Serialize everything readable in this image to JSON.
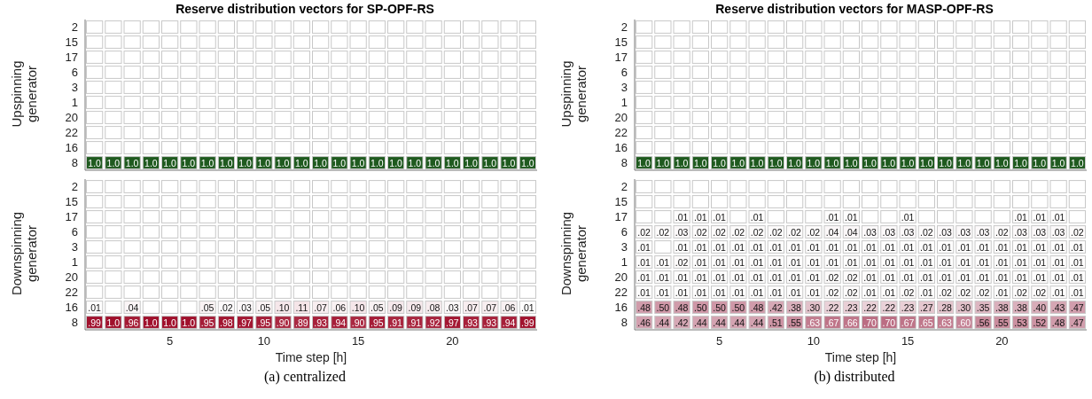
{
  "chart_data": [
    {
      "type": "heatmap",
      "title": "Reserve distribution vectors for SP-OPF-RS",
      "ylabel": "Upspinning generator",
      "color": "#1f5a1f",
      "tick_labels": "y",
      "categories": [
        null,
        null,
        null,
        null,
        "5",
        null,
        null,
        null,
        null,
        "10",
        null,
        null,
        null,
        null,
        "15",
        null,
        null,
        null,
        null,
        "20",
        null,
        null,
        null,
        null
      ],
      "y_categories": [
        "2",
        "15",
        "17",
        "6",
        "3",
        "1",
        "20",
        "22",
        "16",
        "8"
      ],
      "cells": [
        [
          null,
          null,
          null,
          null,
          null,
          null,
          null,
          null,
          null,
          null,
          null,
          null,
          null,
          null,
          null,
          null,
          null,
          null,
          null,
          null,
          null,
          null,
          null,
          null
        ],
        [
          null,
          null,
          null,
          null,
          null,
          null,
          null,
          null,
          null,
          null,
          null,
          null,
          null,
          null,
          null,
          null,
          null,
          null,
          null,
          null,
          null,
          null,
          null,
          null
        ],
        [
          null,
          null,
          null,
          null,
          null,
          null,
          null,
          null,
          null,
          null,
          null,
          null,
          null,
          null,
          null,
          null,
          null,
          null,
          null,
          null,
          null,
          null,
          null,
          null
        ],
        [
          null,
          null,
          null,
          null,
          null,
          null,
          null,
          null,
          null,
          null,
          null,
          null,
          null,
          null,
          null,
          null,
          null,
          null,
          null,
          null,
          null,
          null,
          null,
          null
        ],
        [
          null,
          null,
          null,
          null,
          null,
          null,
          null,
          null,
          null,
          null,
          null,
          null,
          null,
          null,
          null,
          null,
          null,
          null,
          null,
          null,
          null,
          null,
          null,
          null
        ],
        [
          null,
          null,
          null,
          null,
          null,
          null,
          null,
          null,
          null,
          null,
          null,
          null,
          null,
          null,
          null,
          null,
          null,
          null,
          null,
          null,
          null,
          null,
          null,
          null
        ],
        [
          null,
          null,
          null,
          null,
          null,
          null,
          null,
          null,
          null,
          null,
          null,
          null,
          null,
          null,
          null,
          null,
          null,
          null,
          null,
          null,
          null,
          null,
          null,
          null
        ],
        [
          null,
          null,
          null,
          null,
          null,
          null,
          null,
          null,
          null,
          null,
          null,
          null,
          null,
          null,
          null,
          null,
          null,
          null,
          null,
          null,
          null,
          null,
          null,
          null
        ],
        [
          null,
          null,
          null,
          null,
          null,
          null,
          null,
          null,
          null,
          null,
          null,
          null,
          null,
          null,
          null,
          null,
          null,
          null,
          null,
          null,
          null,
          null,
          null,
          null
        ],
        [
          1,
          1,
          1,
          1,
          1,
          1,
          1,
          1,
          1,
          1,
          1,
          1,
          1,
          1,
          1,
          1,
          1,
          1,
          1,
          1,
          1,
          1,
          1,
          1
        ]
      ],
      "cell_labels": [
        [
          null,
          null,
          null,
          null,
          null,
          null,
          null,
          null,
          null,
          null,
          null,
          null,
          null,
          null,
          null,
          null,
          null,
          null,
          null,
          null,
          null,
          null,
          null,
          null
        ],
        [
          null,
          null,
          null,
          null,
          null,
          null,
          null,
          null,
          null,
          null,
          null,
          null,
          null,
          null,
          null,
          null,
          null,
          null,
          null,
          null,
          null,
          null,
          null,
          null
        ],
        [
          null,
          null,
          null,
          null,
          null,
          null,
          null,
          null,
          null,
          null,
          null,
          null,
          null,
          null,
          null,
          null,
          null,
          null,
          null,
          null,
          null,
          null,
          null,
          null
        ],
        [
          null,
          null,
          null,
          null,
          null,
          null,
          null,
          null,
          null,
          null,
          null,
          null,
          null,
          null,
          null,
          null,
          null,
          null,
          null,
          null,
          null,
          null,
          null,
          null
        ],
        [
          null,
          null,
          null,
          null,
          null,
          null,
          null,
          null,
          null,
          null,
          null,
          null,
          null,
          null,
          null,
          null,
          null,
          null,
          null,
          null,
          null,
          null,
          null,
          null
        ],
        [
          null,
          null,
          null,
          null,
          null,
          null,
          null,
          null,
          null,
          null,
          null,
          null,
          null,
          null,
          null,
          null,
          null,
          null,
          null,
          null,
          null,
          null,
          null,
          null
        ],
        [
          null,
          null,
          null,
          null,
          null,
          null,
          null,
          null,
          null,
          null,
          null,
          null,
          null,
          null,
          null,
          null,
          null,
          null,
          null,
          null,
          null,
          null,
          null,
          null
        ],
        [
          null,
          null,
          null,
          null,
          null,
          null,
          null,
          null,
          null,
          null,
          null,
          null,
          null,
          null,
          null,
          null,
          null,
          null,
          null,
          null,
          null,
          null,
          null,
          null
        ],
        [
          null,
          null,
          null,
          null,
          null,
          null,
          null,
          null,
          null,
          null,
          null,
          null,
          null,
          null,
          null,
          null,
          null,
          null,
          null,
          null,
          null,
          null,
          null,
          null
        ],
        [
          "1.0",
          "1.0",
          "1.0",
          "1.0",
          "1.0",
          "1.0",
          "1.0",
          "1.0",
          "1.0",
          "1.0",
          "1.0",
          "1.0",
          "1.0",
          "1.0",
          "1.0",
          "1.0",
          "1.0",
          "1.0",
          "1.0",
          "1.0",
          "1.0",
          "1.0",
          "1.0",
          "1.0"
        ]
      ]
    },
    {
      "type": "heatmap",
      "title": "Reserve distribution vectors for MASP-OPF-RS",
      "ylabel": "Upspinning generator",
      "color": "#1f5a1f",
      "tick_labels": "y",
      "categories": [
        null,
        null,
        null,
        null,
        "5",
        null,
        null,
        null,
        null,
        "10",
        null,
        null,
        null,
        null,
        "15",
        null,
        null,
        null,
        null,
        "20",
        null,
        null,
        null,
        null
      ],
      "y_categories": [
        "2",
        "15",
        "17",
        "6",
        "3",
        "1",
        "20",
        "22",
        "16",
        "8"
      ],
      "cells": [
        [
          null,
          null,
          null,
          null,
          null,
          null,
          null,
          null,
          null,
          null,
          null,
          null,
          null,
          null,
          null,
          null,
          null,
          null,
          null,
          null,
          null,
          null,
          null,
          null
        ],
        [
          null,
          null,
          null,
          null,
          null,
          null,
          null,
          null,
          null,
          null,
          null,
          null,
          null,
          null,
          null,
          null,
          null,
          null,
          null,
          null,
          null,
          null,
          null,
          null
        ],
        [
          null,
          null,
          null,
          null,
          null,
          null,
          null,
          null,
          null,
          null,
          null,
          null,
          null,
          null,
          null,
          null,
          null,
          null,
          null,
          null,
          null,
          null,
          null,
          null
        ],
        [
          null,
          null,
          null,
          null,
          null,
          null,
          null,
          null,
          null,
          null,
          null,
          null,
          null,
          null,
          null,
          null,
          null,
          null,
          null,
          null,
          null,
          null,
          null,
          null
        ],
        [
          null,
          null,
          null,
          null,
          null,
          null,
          null,
          null,
          null,
          null,
          null,
          null,
          null,
          null,
          null,
          null,
          null,
          null,
          null,
          null,
          null,
          null,
          null,
          null
        ],
        [
          null,
          null,
          null,
          null,
          null,
          null,
          null,
          null,
          null,
          null,
          null,
          null,
          null,
          null,
          null,
          null,
          null,
          null,
          null,
          null,
          null,
          null,
          null,
          null
        ],
        [
          null,
          null,
          null,
          null,
          null,
          null,
          null,
          null,
          null,
          null,
          null,
          null,
          null,
          null,
          null,
          null,
          null,
          null,
          null,
          null,
          null,
          null,
          null,
          null
        ],
        [
          null,
          null,
          null,
          null,
          null,
          null,
          null,
          null,
          null,
          null,
          null,
          null,
          null,
          null,
          null,
          null,
          null,
          null,
          null,
          null,
          null,
          null,
          null,
          null
        ],
        [
          null,
          null,
          null,
          null,
          null,
          null,
          null,
          null,
          null,
          null,
          null,
          null,
          null,
          null,
          null,
          null,
          null,
          null,
          null,
          null,
          null,
          null,
          null,
          null
        ],
        [
          1,
          1,
          1,
          1,
          1,
          1,
          1,
          1,
          1,
          1,
          1,
          1,
          1,
          1,
          1,
          1,
          1,
          1,
          1,
          1,
          1,
          1,
          1,
          1
        ]
      ],
      "cell_labels": [
        [
          null,
          null,
          null,
          null,
          null,
          null,
          null,
          null,
          null,
          null,
          null,
          null,
          null,
          null,
          null,
          null,
          null,
          null,
          null,
          null,
          null,
          null,
          null,
          null
        ],
        [
          null,
          null,
          null,
          null,
          null,
          null,
          null,
          null,
          null,
          null,
          null,
          null,
          null,
          null,
          null,
          null,
          null,
          null,
          null,
          null,
          null,
          null,
          null,
          null
        ],
        [
          null,
          null,
          null,
          null,
          null,
          null,
          null,
          null,
          null,
          null,
          null,
          null,
          null,
          null,
          null,
          null,
          null,
          null,
          null,
          null,
          null,
          null,
          null,
          null
        ],
        [
          null,
          null,
          null,
          null,
          null,
          null,
          null,
          null,
          null,
          null,
          null,
          null,
          null,
          null,
          null,
          null,
          null,
          null,
          null,
          null,
          null,
          null,
          null,
          null
        ],
        [
          null,
          null,
          null,
          null,
          null,
          null,
          null,
          null,
          null,
          null,
          null,
          null,
          null,
          null,
          null,
          null,
          null,
          null,
          null,
          null,
          null,
          null,
          null,
          null
        ],
        [
          null,
          null,
          null,
          null,
          null,
          null,
          null,
          null,
          null,
          null,
          null,
          null,
          null,
          null,
          null,
          null,
          null,
          null,
          null,
          null,
          null,
          null,
          null,
          null
        ],
        [
          null,
          null,
          null,
          null,
          null,
          null,
          null,
          null,
          null,
          null,
          null,
          null,
          null,
          null,
          null,
          null,
          null,
          null,
          null,
          null,
          null,
          null,
          null,
          null
        ],
        [
          null,
          null,
          null,
          null,
          null,
          null,
          null,
          null,
          null,
          null,
          null,
          null,
          null,
          null,
          null,
          null,
          null,
          null,
          null,
          null,
          null,
          null,
          null,
          null
        ],
        [
          null,
          null,
          null,
          null,
          null,
          null,
          null,
          null,
          null,
          null,
          null,
          null,
          null,
          null,
          null,
          null,
          null,
          null,
          null,
          null,
          null,
          null,
          null,
          null
        ],
        [
          "1.0",
          "1.0",
          "1.0",
          "1.0",
          "1.0",
          "1.0",
          "1.0",
          "1.0",
          "1.0",
          "1.0",
          "1.0",
          "1.0",
          "1.0",
          "1.0",
          "1.0",
          "1.0",
          "1.0",
          "1.0",
          "1.0",
          "1.0",
          "1.0",
          "1.0",
          "1.0",
          "1.0"
        ]
      ]
    },
    {
      "type": "heatmap",
      "ylabel": "Downspinning generator",
      "xlabel": "Time step [h]",
      "color": "#a0102c",
      "annotations": [
        "(a) centralized"
      ],
      "categories": [
        null,
        null,
        null,
        null,
        "5",
        null,
        null,
        null,
        null,
        "10",
        null,
        null,
        null,
        null,
        "15",
        null,
        null,
        null,
        null,
        "20",
        null,
        null,
        null,
        null
      ],
      "y_categories": [
        "2",
        "15",
        "17",
        "6",
        "3",
        "1",
        "20",
        "22",
        "16",
        "8"
      ],
      "cells": [
        [
          null,
          null,
          null,
          null,
          null,
          null,
          null,
          null,
          null,
          null,
          null,
          null,
          null,
          null,
          null,
          null,
          null,
          null,
          null,
          null,
          null,
          null,
          null,
          null
        ],
        [
          null,
          null,
          null,
          null,
          null,
          null,
          null,
          null,
          null,
          null,
          null,
          null,
          null,
          null,
          null,
          null,
          null,
          null,
          null,
          null,
          null,
          null,
          null,
          null
        ],
        [
          null,
          null,
          null,
          null,
          null,
          null,
          null,
          null,
          null,
          null,
          null,
          null,
          null,
          null,
          null,
          null,
          null,
          null,
          null,
          null,
          null,
          null,
          null,
          null
        ],
        [
          null,
          null,
          null,
          null,
          null,
          null,
          null,
          null,
          null,
          null,
          null,
          null,
          null,
          null,
          null,
          null,
          null,
          null,
          null,
          null,
          null,
          null,
          null,
          null
        ],
        [
          null,
          null,
          null,
          null,
          null,
          null,
          null,
          null,
          null,
          null,
          null,
          null,
          null,
          null,
          null,
          null,
          null,
          null,
          null,
          null,
          null,
          null,
          null,
          null
        ],
        [
          null,
          null,
          null,
          null,
          null,
          null,
          null,
          null,
          null,
          null,
          null,
          null,
          null,
          null,
          null,
          null,
          null,
          null,
          null,
          null,
          null,
          null,
          null,
          null
        ],
        [
          null,
          null,
          null,
          null,
          null,
          null,
          null,
          null,
          null,
          null,
          null,
          null,
          null,
          null,
          null,
          null,
          null,
          null,
          null,
          null,
          null,
          null,
          null,
          null
        ],
        [
          null,
          null,
          null,
          null,
          null,
          null,
          null,
          null,
          null,
          null,
          null,
          null,
          null,
          null,
          null,
          null,
          null,
          null,
          null,
          null,
          null,
          null,
          null,
          null
        ],
        [
          0.01,
          null,
          0.04,
          null,
          null,
          null,
          0.05,
          0.02,
          0.03,
          0.05,
          0.1,
          0.11,
          0.07,
          0.06,
          0.1,
          0.05,
          0.09,
          0.09,
          0.08,
          0.03,
          0.07,
          0.07,
          0.06,
          0.01
        ],
        [
          0.99,
          1,
          0.96,
          1,
          1,
          1,
          0.95,
          0.98,
          0.97,
          0.95,
          0.9,
          0.89,
          0.93,
          0.94,
          0.9,
          0.95,
          0.91,
          0.91,
          0.92,
          0.97,
          0.93,
          0.93,
          0.94,
          0.99
        ]
      ],
      "cell_labels": [
        [
          null,
          null,
          null,
          null,
          null,
          null,
          null,
          null,
          null,
          null,
          null,
          null,
          null,
          null,
          null,
          null,
          null,
          null,
          null,
          null,
          null,
          null,
          null,
          null
        ],
        [
          null,
          null,
          null,
          null,
          null,
          null,
          null,
          null,
          null,
          null,
          null,
          null,
          null,
          null,
          null,
          null,
          null,
          null,
          null,
          null,
          null,
          null,
          null,
          null
        ],
        [
          null,
          null,
          null,
          null,
          null,
          null,
          null,
          null,
          null,
          null,
          null,
          null,
          null,
          null,
          null,
          null,
          null,
          null,
          null,
          null,
          null,
          null,
          null,
          null
        ],
        [
          null,
          null,
          null,
          null,
          null,
          null,
          null,
          null,
          null,
          null,
          null,
          null,
          null,
          null,
          null,
          null,
          null,
          null,
          null,
          null,
          null,
          null,
          null,
          null
        ],
        [
          null,
          null,
          null,
          null,
          null,
          null,
          null,
          null,
          null,
          null,
          null,
          null,
          null,
          null,
          null,
          null,
          null,
          null,
          null,
          null,
          null,
          null,
          null,
          null
        ],
        [
          null,
          null,
          null,
          null,
          null,
          null,
          null,
          null,
          null,
          null,
          null,
          null,
          null,
          null,
          null,
          null,
          null,
          null,
          null,
          null,
          null,
          null,
          null,
          null
        ],
        [
          null,
          null,
          null,
          null,
          null,
          null,
          null,
          null,
          null,
          null,
          null,
          null,
          null,
          null,
          null,
          null,
          null,
          null,
          null,
          null,
          null,
          null,
          null,
          null
        ],
        [
          null,
          null,
          null,
          null,
          null,
          null,
          null,
          null,
          null,
          null,
          null,
          null,
          null,
          null,
          null,
          null,
          null,
          null,
          null,
          null,
          null,
          null,
          null,
          null
        ],
        [
          ".01",
          null,
          ".04",
          null,
          null,
          null,
          ".05",
          ".02",
          ".03",
          ".05",
          ".10",
          ".11",
          ".07",
          ".06",
          ".10",
          ".05",
          ".09",
          ".09",
          ".08",
          ".03",
          ".07",
          ".07",
          ".06",
          ".01"
        ],
        [
          ".99",
          "1.0",
          ".96",
          "1.0",
          "1.0",
          "1.0",
          ".95",
          ".98",
          ".97",
          ".95",
          ".90",
          ".89",
          ".93",
          ".94",
          ".90",
          ".95",
          ".91",
          ".91",
          ".92",
          ".97",
          ".93",
          ".93",
          ".94",
          ".99"
        ]
      ]
    },
    {
      "type": "heatmap",
      "ylabel": "Downspinning generator",
      "xlabel": "Time step [h]",
      "color": "#9e2f4e",
      "annotations": [
        "(b) distributed"
      ],
      "categories": [
        null,
        null,
        null,
        null,
        "5",
        null,
        null,
        null,
        null,
        "10",
        null,
        null,
        null,
        null,
        "15",
        null,
        null,
        null,
        null,
        "20",
        null,
        null,
        null,
        null
      ],
      "y_categories": [
        "2",
        "15",
        "17",
        "6",
        "3",
        "1",
        "20",
        "22",
        "16",
        "8"
      ],
      "cells": [
        [
          null,
          null,
          null,
          null,
          null,
          null,
          null,
          null,
          null,
          null,
          null,
          null,
          null,
          null,
          null,
          null,
          null,
          null,
          null,
          null,
          null,
          null,
          null,
          null
        ],
        [
          null,
          null,
          null,
          null,
          null,
          null,
          null,
          null,
          null,
          null,
          null,
          null,
          null,
          null,
          null,
          null,
          null,
          null,
          null,
          null,
          null,
          null,
          null,
          null
        ],
        [
          null,
          null,
          0.01,
          0.01,
          0.01,
          null,
          0.01,
          null,
          null,
          null,
          0.01,
          0.01,
          null,
          null,
          0.01,
          null,
          null,
          null,
          null,
          null,
          0.01,
          0.01,
          0.01,
          null
        ],
        [
          0.02,
          0.02,
          0.03,
          0.02,
          0.02,
          0.02,
          0.02,
          0.02,
          0.02,
          0.02,
          0.04,
          0.04,
          0.03,
          0.03,
          0.03,
          0.02,
          0.03,
          0.03,
          0.03,
          0.02,
          0.03,
          0.03,
          0.03,
          0.02
        ],
        [
          0.01,
          null,
          0.01,
          0.01,
          0.01,
          0.01,
          0.01,
          0.01,
          0.01,
          0.01,
          0.01,
          0.01,
          0.01,
          0.01,
          0.01,
          0.01,
          0.01,
          0.01,
          0.01,
          0.01,
          0.01,
          0.01,
          0.01,
          0.01
        ],
        [
          0.01,
          0.01,
          0.02,
          0.01,
          0.01,
          0.01,
          0.01,
          0.01,
          0.01,
          0.01,
          0.01,
          0.01,
          0.01,
          0.01,
          0.01,
          0.01,
          0.01,
          0.01,
          0.01,
          0.01,
          0.01,
          0.01,
          0.01,
          0.01
        ],
        [
          0.01,
          0.01,
          0.01,
          0.01,
          0.01,
          0.01,
          0.01,
          0.01,
          0.01,
          0.01,
          0.02,
          0.02,
          0.01,
          0.01,
          0.01,
          0.01,
          0.01,
          0.01,
          0.01,
          0.01,
          0.01,
          0.01,
          0.01,
          0.01
        ],
        [
          0.01,
          0.01,
          0.01,
          0.01,
          0.01,
          0.01,
          0.01,
          0.01,
          0.01,
          0.01,
          0.02,
          0.02,
          0.01,
          0.01,
          0.02,
          0.01,
          0.02,
          0.02,
          0.02,
          0.01,
          0.02,
          0.02,
          0.01,
          0.01
        ],
        [
          0.48,
          0.5,
          0.48,
          0.5,
          0.5,
          0.5,
          0.48,
          0.42,
          0.38,
          0.3,
          0.22,
          0.23,
          0.22,
          0.22,
          0.23,
          0.27,
          0.28,
          0.3,
          0.35,
          0.38,
          0.38,
          0.4,
          0.43,
          0.47
        ],
        [
          0.46,
          0.44,
          0.42,
          0.44,
          0.44,
          0.44,
          0.44,
          0.51,
          0.55,
          0.63,
          0.67,
          0.66,
          0.7,
          0.7,
          0.67,
          0.65,
          0.63,
          0.6,
          0.56,
          0.55,
          0.53,
          0.52,
          0.48,
          0.47
        ]
      ],
      "cell_labels": [
        [
          null,
          null,
          null,
          null,
          null,
          null,
          null,
          null,
          null,
          null,
          null,
          null,
          null,
          null,
          null,
          null,
          null,
          null,
          null,
          null,
          null,
          null,
          null,
          null
        ],
        [
          null,
          null,
          null,
          null,
          null,
          null,
          null,
          null,
          null,
          null,
          null,
          null,
          null,
          null,
          null,
          null,
          null,
          null,
          null,
          null,
          null,
          null,
          null,
          null
        ],
        [
          null,
          null,
          ".01",
          ".01",
          ".01",
          null,
          ".01",
          null,
          null,
          null,
          ".01",
          ".01",
          null,
          null,
          ".01",
          null,
          null,
          null,
          null,
          null,
          ".01",
          ".01",
          ".01",
          null
        ],
        [
          ".02",
          ".02",
          ".03",
          ".02",
          ".02",
          ".02",
          ".02",
          ".02",
          ".02",
          ".02",
          ".04",
          ".04",
          ".03",
          ".03",
          ".03",
          ".02",
          ".03",
          ".03",
          ".03",
          ".02",
          ".03",
          ".03",
          ".03",
          ".02"
        ],
        [
          ".01",
          null,
          ".01",
          ".01",
          ".01",
          ".01",
          ".01",
          ".01",
          ".01",
          ".01",
          ".01",
          ".01",
          ".01",
          ".01",
          ".01",
          ".01",
          ".01",
          ".01",
          ".01",
          ".01",
          ".01",
          ".01",
          ".01",
          ".01"
        ],
        [
          ".01",
          ".01",
          ".02",
          ".01",
          ".01",
          ".01",
          ".01",
          ".01",
          ".01",
          ".01",
          ".01",
          ".01",
          ".01",
          ".01",
          ".01",
          ".01",
          ".01",
          ".01",
          ".01",
          ".01",
          ".01",
          ".01",
          ".01",
          ".01"
        ],
        [
          ".01",
          ".01",
          ".01",
          ".01",
          ".01",
          ".01",
          ".01",
          ".01",
          ".01",
          ".01",
          ".02",
          ".02",
          ".01",
          ".01",
          ".01",
          ".01",
          ".01",
          ".01",
          ".01",
          ".01",
          ".01",
          ".01",
          ".01",
          ".01"
        ],
        [
          ".01",
          ".01",
          ".01",
          ".01",
          ".01",
          ".01",
          ".01",
          ".01",
          ".01",
          ".01",
          ".02",
          ".02",
          ".01",
          ".01",
          ".02",
          ".01",
          ".02",
          ".02",
          ".02",
          ".01",
          ".02",
          ".02",
          ".01",
          ".01"
        ],
        [
          ".48",
          ".50",
          ".48",
          ".50",
          ".50",
          ".50",
          ".48",
          ".42",
          ".38",
          ".30",
          ".22",
          ".23",
          ".22",
          ".22",
          ".23",
          ".27",
          ".28",
          ".30",
          ".35",
          ".38",
          ".38",
          ".40",
          ".43",
          ".47"
        ],
        [
          ".46",
          ".44",
          ".42",
          ".44",
          ".44",
          ".44",
          ".44",
          ".51",
          ".55",
          ".63",
          ".67",
          ".66",
          ".70",
          ".70",
          ".67",
          ".65",
          ".63",
          ".60",
          ".56",
          ".55",
          ".53",
          ".52",
          ".48",
          ".47"
        ]
      ]
    }
  ]
}
